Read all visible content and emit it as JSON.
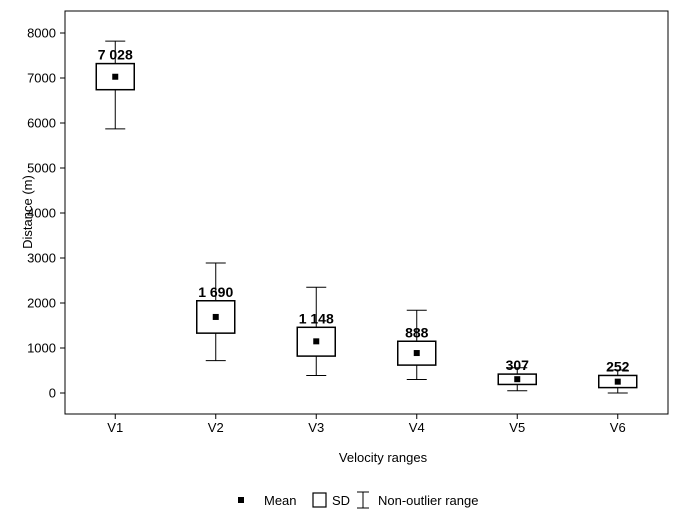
{
  "chart_data": {
    "type": "boxplot",
    "categories": [
      "V1",
      "V2",
      "V3",
      "V4",
      "V5",
      "V6"
    ],
    "series": [
      {
        "mean": [
          7028,
          1690,
          1148,
          888,
          307,
          252
        ],
        "mean_labels": [
          "7 028",
          "1 690",
          "1 148",
          "888",
          "307",
          "252"
        ],
        "sd_low": [
          6740,
          1330,
          820,
          620,
          190,
          120
        ],
        "sd_high": [
          7320,
          2050,
          1460,
          1150,
          420,
          390
        ],
        "range_min": [
          5870,
          720,
          390,
          300,
          50,
          0
        ],
        "range_max": [
          7820,
          2890,
          2350,
          1840,
          560,
          510
        ]
      }
    ],
    "xlabel": "Velocity ranges",
    "ylabel": "Distance (m)",
    "ylim": [
      -500,
      8500
    ],
    "yticks": [
      0,
      1000,
      2000,
      3000,
      4000,
      5000,
      6000,
      7000,
      8000
    ],
    "grid": false,
    "legend": {
      "placement": "bottom-center",
      "items": [
        {
          "icon": "mean-square-icon",
          "label": "Mean"
        },
        {
          "icon": "sd-box-icon",
          "label": "SD"
        },
        {
          "icon": "range-whisker-icon",
          "label": "Non-outlier range"
        }
      ]
    }
  }
}
